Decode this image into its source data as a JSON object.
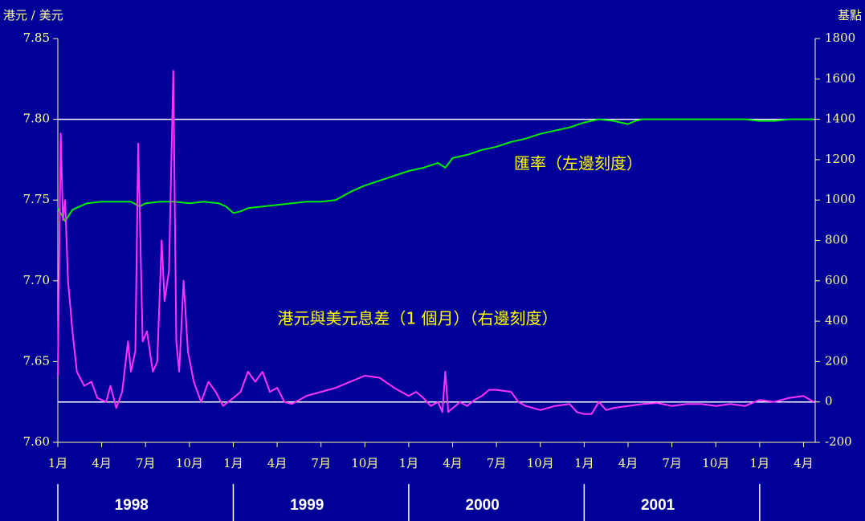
{
  "chart_data": {
    "type": "line",
    "y_title": "港元 / 美元",
    "y2_title": "基點",
    "xlim": [
      0,
      51.8
    ],
    "xticks": [
      {
        "value": 0,
        "label": "1月"
      },
      {
        "value": 3,
        "label": "4月"
      },
      {
        "value": 6,
        "label": "7月"
      },
      {
        "value": 9,
        "label": "10月"
      },
      {
        "value": 12,
        "label": "1月"
      },
      {
        "value": 15,
        "label": "4月"
      },
      {
        "value": 18,
        "label": "7月"
      },
      {
        "value": 21,
        "label": "10月"
      },
      {
        "value": 24,
        "label": "1月"
      },
      {
        "value": 27,
        "label": "4月"
      },
      {
        "value": 30,
        "label": "7月"
      },
      {
        "value": 33,
        "label": "10月"
      },
      {
        "value": 36,
        "label": "1月"
      },
      {
        "value": 39,
        "label": "4月"
      },
      {
        "value": 42,
        "label": "7月"
      },
      {
        "value": 45,
        "label": "10月"
      },
      {
        "value": 48,
        "label": "1月"
      },
      {
        "value": 51,
        "label": "4月"
      }
    ],
    "x_groups": [
      "1998",
      "1999",
      "2000",
      "2001"
    ],
    "ylim": [
      7.6,
      7.85
    ],
    "yticks": [
      {
        "value": 7.6,
        "label": "7.60"
      },
      7.65,
      {
        "value": 7.7,
        "label": "7.70"
      },
      7.75,
      {
        "value": 7.8,
        "label": "7.80"
      },
      7.85
    ],
    "y2lim": [
      -200,
      1800
    ],
    "y2ticks": [
      -200,
      0,
      200,
      400,
      600,
      800,
      1000,
      1200,
      1400,
      1600,
      1800
    ],
    "reference_lines": [
      {
        "axis": "y",
        "value": 7.8
      },
      {
        "axis": "y2",
        "value": 0
      }
    ],
    "series": [
      {
        "name": "匯率（左邊刻度）",
        "color": "#00ee00",
        "axis": "y",
        "x": [
          0,
          0.5,
          1,
          1.5,
          2,
          3,
          4,
          5,
          5.6,
          6,
          7,
          8,
          9,
          10,
          11,
          11.5,
          12,
          12.5,
          13,
          14,
          15,
          16,
          17,
          18,
          19,
          20,
          21,
          22,
          23,
          24,
          25,
          26,
          26.5,
          27,
          28,
          29,
          30,
          31,
          32,
          33,
          34,
          35,
          36,
          37,
          38,
          39,
          39.5,
          40,
          41,
          42,
          43,
          44,
          45,
          46,
          47,
          48,
          49,
          50,
          51,
          51.7
        ],
        "values": [
          7.745,
          7.737,
          7.744,
          7.746,
          7.748,
          7.749,
          7.749,
          7.749,
          7.746,
          7.748,
          7.749,
          7.749,
          7.748,
          7.749,
          7.748,
          7.746,
          7.742,
          7.743,
          7.745,
          7.746,
          7.747,
          7.748,
          7.749,
          7.749,
          7.75,
          7.755,
          7.759,
          7.762,
          7.765,
          7.768,
          7.77,
          7.773,
          7.77,
          7.776,
          7.778,
          7.781,
          7.783,
          7.786,
          7.788,
          7.791,
          7.793,
          7.795,
          7.798,
          7.8,
          7.799,
          7.797,
          7.799,
          7.8,
          7.8,
          7.8,
          7.8,
          7.8,
          7.8,
          7.8,
          7.8,
          7.799,
          7.799,
          7.8,
          7.8,
          7.8
        ]
      },
      {
        "name": "港元與美元息差（1 個月）（右邊刻度）",
        "color": "#ff33ff",
        "axis": "y2",
        "x": [
          0,
          0.2,
          0.35,
          0.5,
          0.7,
          1,
          1.3,
          1.8,
          2.3,
          2.7,
          3.3,
          3.6,
          4,
          4.4,
          4.8,
          5,
          5.3,
          5.5,
          5.8,
          6.1,
          6.5,
          6.8,
          7.1,
          7.3,
          7.6,
          7.9,
          8.1,
          8.3,
          8.6,
          8.9,
          9.3,
          9.8,
          10.3,
          10.8,
          11.3,
          12,
          12.5,
          13,
          13.5,
          14,
          14.5,
          15,
          15.5,
          16,
          16.5,
          17,
          18,
          19,
          20,
          21,
          22,
          23,
          24,
          24.5,
          25,
          25.5,
          26,
          26.3,
          26.5,
          26.7,
          27.5,
          28,
          28.5,
          29,
          29.5,
          30,
          31,
          31.5,
          32,
          33,
          34,
          35,
          35.5,
          36,
          36.5,
          37,
          37.5,
          38,
          39,
          40,
          41,
          42,
          43,
          44,
          45,
          46,
          47,
          48,
          49,
          50,
          51,
          51.7
        ],
        "values": [
          130,
          1330,
          900,
          1000,
          600,
          350,
          150,
          80,
          100,
          20,
          0,
          80,
          -30,
          50,
          300,
          150,
          250,
          1280,
          300,
          350,
          150,
          200,
          800,
          500,
          650,
          1640,
          300,
          150,
          600,
          250,
          100,
          0,
          100,
          50,
          -20,
          20,
          50,
          150,
          100,
          150,
          50,
          70,
          0,
          -10,
          10,
          30,
          50,
          70,
          100,
          130,
          120,
          70,
          30,
          50,
          20,
          -20,
          0,
          -50,
          150,
          -50,
          0,
          -20,
          10,
          30,
          60,
          60,
          50,
          0,
          -20,
          -40,
          -20,
          -10,
          -50,
          -60,
          -60,
          0,
          -40,
          -30,
          -20,
          -10,
          -5,
          -20,
          -10,
          -10,
          -20,
          -10,
          -20,
          10,
          0,
          20,
          30,
          0
        ]
      }
    ]
  }
}
